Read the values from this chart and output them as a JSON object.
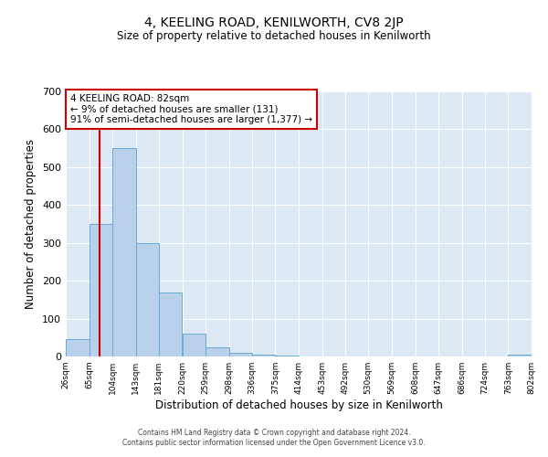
{
  "title": "4, KEELING ROAD, KENILWORTH, CV8 2JP",
  "subtitle": "Size of property relative to detached houses in Kenilworth",
  "xlabel": "Distribution of detached houses by size in Kenilworth",
  "ylabel": "Number of detached properties",
  "bar_color": "#b8d0ea",
  "bar_edge_color": "#6aaad4",
  "background_color": "#dce9f5",
  "grid_color": "#ffffff",
  "vline_color": "#cc0000",
  "vline_x": 82,
  "annotation_title": "4 KEELING ROAD: 82sqm",
  "annotation_line1": "← 9% of detached houses are smaller (131)",
  "annotation_line2": "91% of semi-detached houses are larger (1,377) →",
  "annotation_box_color": "#ffffff",
  "annotation_box_edge": "#cc0000",
  "bin_edges": [
    26,
    65,
    104,
    143,
    181,
    220,
    259,
    298,
    336,
    375,
    414,
    453,
    492,
    530,
    569,
    608,
    647,
    686,
    724,
    763,
    802
  ],
  "bin_heights": [
    45,
    350,
    550,
    300,
    170,
    60,
    25,
    10,
    5,
    3,
    1,
    0,
    1,
    0,
    0,
    0,
    0,
    0,
    0,
    5
  ],
  "tick_labels": [
    "26sqm",
    "65sqm",
    "104sqm",
    "143sqm",
    "181sqm",
    "220sqm",
    "259sqm",
    "298sqm",
    "336sqm",
    "375sqm",
    "414sqm",
    "453sqm",
    "492sqm",
    "530sqm",
    "569sqm",
    "608sqm",
    "647sqm",
    "686sqm",
    "724sqm",
    "763sqm",
    "802sqm"
  ],
  "ylim": [
    0,
    700
  ],
  "yticks": [
    0,
    100,
    200,
    300,
    400,
    500,
    600,
    700
  ],
  "footer1": "Contains HM Land Registry data © Crown copyright and database right 2024.",
  "footer2": "Contains public sector information licensed under the Open Government Licence v3.0."
}
